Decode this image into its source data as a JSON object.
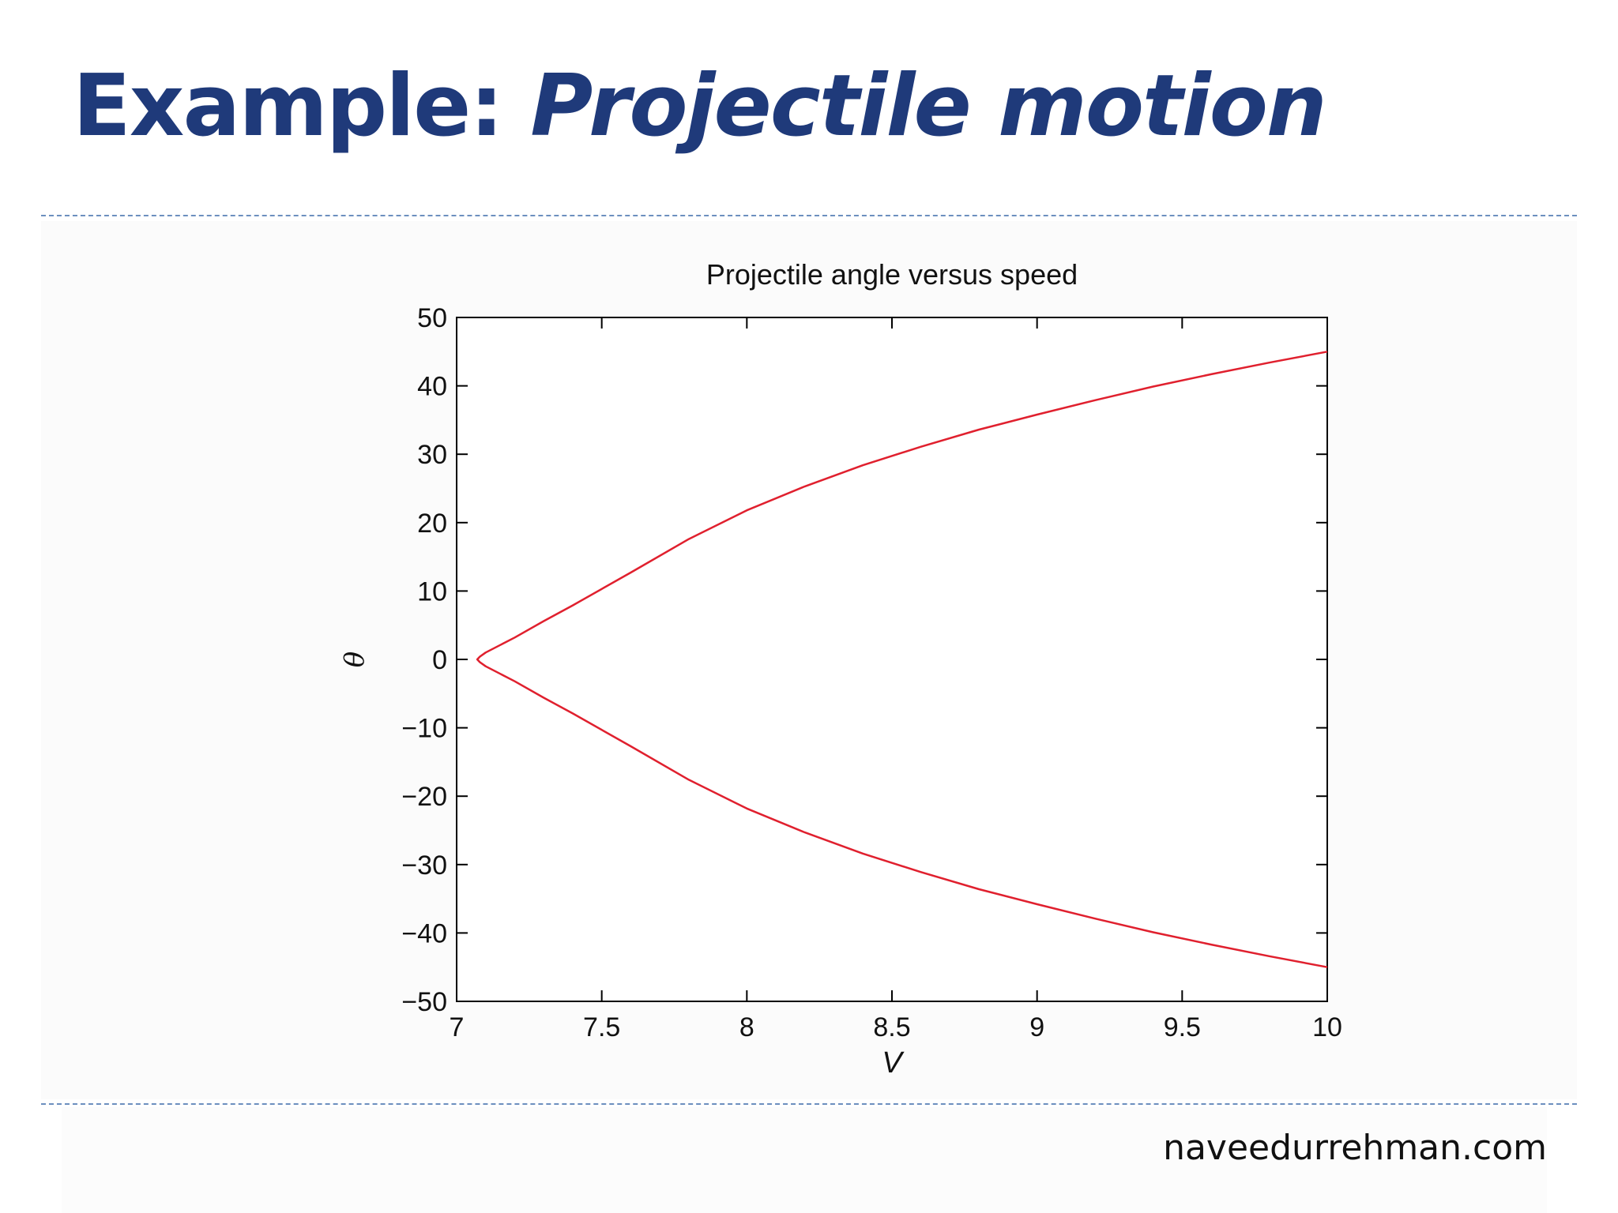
{
  "slide": {
    "title_lead": "Example: ",
    "title_emph": "Projectile motion",
    "footer": "naveedurrehman.com"
  },
  "colors": {
    "title": "#1f3a7a",
    "divider": "#6c8fbf",
    "curve": "#e0202e",
    "axes": "#000000"
  },
  "chart_data": {
    "type": "line",
    "title": "Projectile angle versus speed",
    "xlabel": "V",
    "ylabel": "θ",
    "xlim": [
      7,
      10
    ],
    "ylim": [
      -50,
      50
    ],
    "x_ticks": [
      7,
      7.5,
      8,
      8.5,
      9,
      9.5,
      10
    ],
    "x_tick_labels": [
      "7",
      "7.5",
      "8",
      "8.5",
      "9",
      "9.5",
      "10"
    ],
    "y_ticks": [
      50,
      40,
      30,
      20,
      10,
      0,
      -10,
      -20,
      -30,
      -40,
      -50
    ],
    "y_tick_labels": [
      "50",
      "40",
      "30",
      "20",
      "10",
      "0",
      "−10",
      "−20",
      "−30",
      "−40",
      "−50"
    ],
    "grid": false,
    "legend": "none",
    "series": [
      {
        "color": "#e0202e",
        "x": [
          10,
          9.8,
          9.6,
          9.4,
          9.2,
          9.0,
          8.8,
          8.6,
          8.4,
          8.2,
          8.0,
          7.8,
          7.6,
          7.4,
          7.3,
          7.2,
          7.15,
          7.1,
          7.08,
          7.071,
          7.08,
          7.1,
          7.15,
          7.2,
          7.3,
          7.4,
          7.6,
          7.8,
          8.0,
          8.2,
          8.4,
          8.6,
          8.8,
          9.0,
          9.2,
          9.4,
          9.6,
          9.8,
          10
        ],
        "y": [
          45,
          43.4,
          41.7,
          39.9,
          37.9,
          35.8,
          33.6,
          31.1,
          28.4,
          25.3,
          21.8,
          17.6,
          12.7,
          7.9,
          5.6,
          3.2,
          2.1,
          1.0,
          0.4,
          0,
          -0.4,
          -1.0,
          -2.1,
          -3.2,
          -5.6,
          -7.9,
          -12.7,
          -17.6,
          -21.8,
          -25.3,
          -28.4,
          -31.1,
          -33.6,
          -35.8,
          -37.9,
          -39.9,
          -41.7,
          -43.4,
          -45
        ]
      }
    ]
  }
}
